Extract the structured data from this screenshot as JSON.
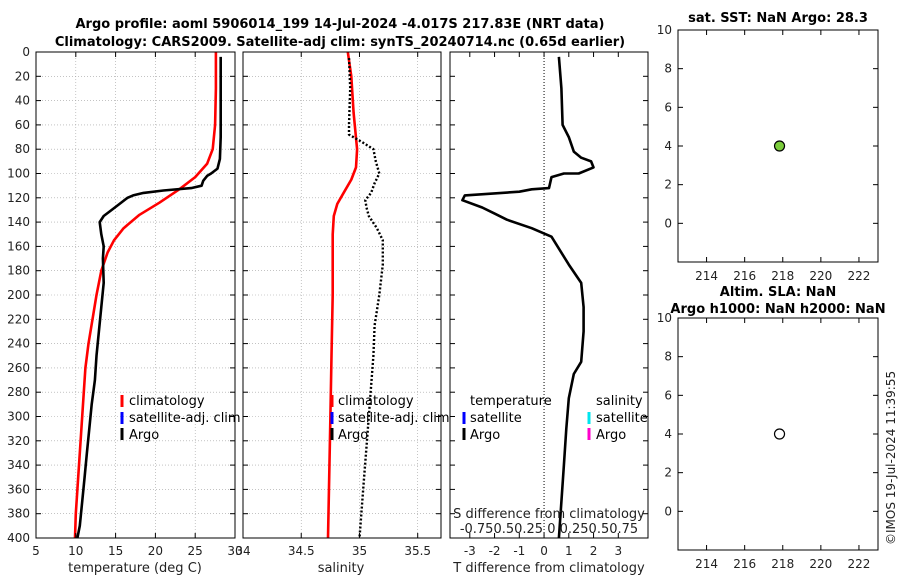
{
  "header": {
    "title_line1": "Argo profile: aoml 5906014_199 14-Jul-2024 -4.017S 217.83E (NRT data)",
    "title_line2": "Climatology: CARS2009. Satellite-adj clim: synTS_20240714.nc (0.65d earlier)"
  },
  "footer": {
    "timestamp": "©IMOS 19-Jul-2024 11:39:55"
  },
  "colors": {
    "climatology": "#ff0000",
    "satellite": "#0000ff",
    "argo": "#000000",
    "sal_satellite": "#00e5ee",
    "sal_argo": "#ff00cc",
    "sst_marker": "#7ccd3c"
  },
  "chart_data": [
    {
      "type": "line",
      "id": "temperature",
      "xlabel": "temperature (deg C)",
      "xlim": [
        5,
        30
      ],
      "xticks": [
        "5",
        "10",
        "15",
        "20",
        "25",
        "30"
      ],
      "ylim": [
        0,
        400
      ],
      "yticks": [
        "0",
        "20",
        "40",
        "60",
        "80",
        "100",
        "120",
        "140",
        "160",
        "180",
        "200",
        "220",
        "240",
        "260",
        "280",
        "300",
        "320",
        "340",
        "360",
        "380",
        "400"
      ],
      "legend": [
        "climatology",
        "satellite-adj. clim",
        "Argo"
      ],
      "series": [
        {
          "name": "climatology",
          "style": "solid",
          "points": [
            [
              27.6,
              0
            ],
            [
              27.6,
              30
            ],
            [
              27.5,
              60
            ],
            [
              27.2,
              80
            ],
            [
              26.5,
              92
            ],
            [
              25,
              103
            ],
            [
              23,
              113
            ],
            [
              20.5,
              124
            ],
            [
              18,
              134
            ],
            [
              16,
              145
            ],
            [
              14.8,
              155
            ],
            [
              14,
              165
            ],
            [
              13.2,
              180
            ],
            [
              12.6,
              200
            ],
            [
              12.1,
              220
            ],
            [
              11.6,
              240
            ],
            [
              11.2,
              260
            ],
            [
              11,
              280
            ],
            [
              10.8,
              300
            ],
            [
              10.6,
              320
            ],
            [
              10.4,
              340
            ],
            [
              10.2,
              360
            ],
            [
              10,
              380
            ],
            [
              9.9,
              400
            ]
          ]
        },
        {
          "name": "Argo",
          "style": "solid",
          "points": [
            [
              28.2,
              4
            ],
            [
              28.2,
              30
            ],
            [
              28.2,
              70
            ],
            [
              28.1,
              88
            ],
            [
              27.8,
              96
            ],
            [
              27,
              100
            ],
            [
              26.5,
              102
            ],
            [
              26,
              106
            ],
            [
              25.8,
              110
            ],
            [
              24.5,
              112
            ],
            [
              21,
              114
            ],
            [
              18.5,
              116
            ],
            [
              17.2,
              118
            ],
            [
              16.5,
              120
            ],
            [
              15.5,
              125
            ],
            [
              14.5,
              130
            ],
            [
              13.5,
              135
            ],
            [
              13,
              140
            ],
            [
              13.2,
              150
            ],
            [
              13.5,
              160
            ],
            [
              13.4,
              170
            ],
            [
              13.5,
              190
            ],
            [
              13.2,
              210
            ],
            [
              12.9,
              230
            ],
            [
              12.6,
              250
            ],
            [
              12.4,
              270
            ],
            [
              12,
              290
            ],
            [
              11.7,
              310
            ],
            [
              11.4,
              330
            ],
            [
              11.1,
              350
            ],
            [
              10.8,
              370
            ],
            [
              10.5,
              390
            ],
            [
              10.2,
              400
            ]
          ]
        }
      ]
    },
    {
      "type": "line",
      "id": "salinity",
      "xlabel": "salinity",
      "xlim": [
        34,
        35.7
      ],
      "xticks": [
        "34",
        "34.5",
        "35",
        "35.5"
      ],
      "ylim": [
        0,
        400
      ],
      "legend": [
        "climatology",
        "satellite-adj. clim",
        "Argo"
      ],
      "series": [
        {
          "name": "climatology",
          "style": "solid",
          "points": [
            [
              34.9,
              0
            ],
            [
              34.93,
              20
            ],
            [
              34.95,
              50
            ],
            [
              34.98,
              80
            ],
            [
              34.97,
              95
            ],
            [
              34.93,
              105
            ],
            [
              34.87,
              115
            ],
            [
              34.81,
              125
            ],
            [
              34.78,
              135
            ],
            [
              34.77,
              150
            ],
            [
              34.77,
              170
            ],
            [
              34.77,
              200
            ],
            [
              34.76,
              250
            ],
            [
              34.75,
              300
            ],
            [
              34.74,
              350
            ],
            [
              34.73,
              400
            ]
          ]
        },
        {
          "name": "Argo",
          "style": "dotted",
          "points": [
            [
              34.91,
              5
            ],
            [
              34.92,
              30
            ],
            [
              34.91,
              60
            ],
            [
              34.91,
              68
            ],
            [
              35.02,
              74
            ],
            [
              35.12,
              80
            ],
            [
              35.14,
              90
            ],
            [
              35.17,
              100
            ],
            [
              35.13,
              108
            ],
            [
              35.1,
              116
            ],
            [
              35.05,
              122
            ],
            [
              35.06,
              128
            ],
            [
              35.08,
              135
            ],
            [
              35.15,
              145
            ],
            [
              35.2,
              155
            ],
            [
              35.2,
              175
            ],
            [
              35.17,
              200
            ],
            [
              35.13,
              225
            ],
            [
              35.12,
              250
            ],
            [
              35.1,
              275
            ],
            [
              35.08,
              300
            ],
            [
              35.06,
              325
            ],
            [
              35.04,
              350
            ],
            [
              35.02,
              375
            ],
            [
              35,
              400
            ]
          ]
        }
      ]
    },
    {
      "type": "line",
      "id": "difference",
      "xlabel": "T difference from climatology",
      "xlabel_top": "S difference from climatology",
      "xlim": [
        -3.8,
        4.2
      ],
      "xticks": [
        "-3",
        "-2",
        "-1",
        "0",
        "1",
        "2",
        "3"
      ],
      "sticks_label": "-0.750.50.25 0 0.250.50.75",
      "ylim": [
        0,
        400
      ],
      "legend_temperature_title": "temperature",
      "legend_salinity_title": "salinity",
      "legend_temperature": [
        "satellite",
        "Argo"
      ],
      "legend_salinity": [
        "satellite",
        "Argo"
      ],
      "series": [
        {
          "name": "T difference",
          "style": "solid",
          "points": [
            [
              0.6,
              4
            ],
            [
              0.7,
              30
            ],
            [
              0.75,
              60
            ],
            [
              1,
              70
            ],
            [
              1.2,
              82
            ],
            [
              1.5,
              87
            ],
            [
              1.9,
              90
            ],
            [
              2,
              95
            ],
            [
              1.4,
              100
            ],
            [
              0.8,
              100
            ],
            [
              0.3,
              103
            ],
            [
              0.2,
              112
            ],
            [
              -0.5,
              113
            ],
            [
              -1,
              115
            ],
            [
              -3.2,
              118
            ],
            [
              -3.3,
              122
            ],
            [
              -2.5,
              128
            ],
            [
              -2,
              133
            ],
            [
              -1.5,
              138
            ],
            [
              -0.5,
              145
            ],
            [
              0.3,
              152
            ],
            [
              1,
              175
            ],
            [
              1.5,
              190
            ],
            [
              1.6,
              210
            ],
            [
              1.6,
              230
            ],
            [
              1.5,
              255
            ],
            [
              1.2,
              265
            ],
            [
              1,
              285
            ],
            [
              0.9,
              310
            ],
            [
              0.8,
              340
            ],
            [
              0.7,
              370
            ],
            [
              0.6,
              400
            ]
          ]
        }
      ]
    },
    {
      "type": "scatter",
      "id": "sst",
      "title": "sat. SST: NaN Argo: 28.3",
      "xlim": [
        212.5,
        223
      ],
      "xticks": [
        "214",
        "216",
        "218",
        "220",
        "222"
      ],
      "ylim": [
        -2,
        10
      ],
      "yticks": [
        "0",
        "2",
        "4",
        "6",
        "8",
        "10"
      ],
      "points": [
        [
          217.83,
          4
        ]
      ],
      "marker": "filled"
    },
    {
      "type": "scatter",
      "id": "sla",
      "title_line1": "Altim. SLA: NaN",
      "title_line2": "Argo h1000: NaN h2000: NaN",
      "xlim": [
        212.5,
        223
      ],
      "xticks": [
        "214",
        "216",
        "218",
        "220",
        "222"
      ],
      "ylim": [
        -2,
        10
      ],
      "yticks": [
        "0",
        "2",
        "4",
        "6",
        "8",
        "10"
      ],
      "points": [
        [
          217.83,
          4
        ]
      ],
      "marker": "open"
    }
  ]
}
